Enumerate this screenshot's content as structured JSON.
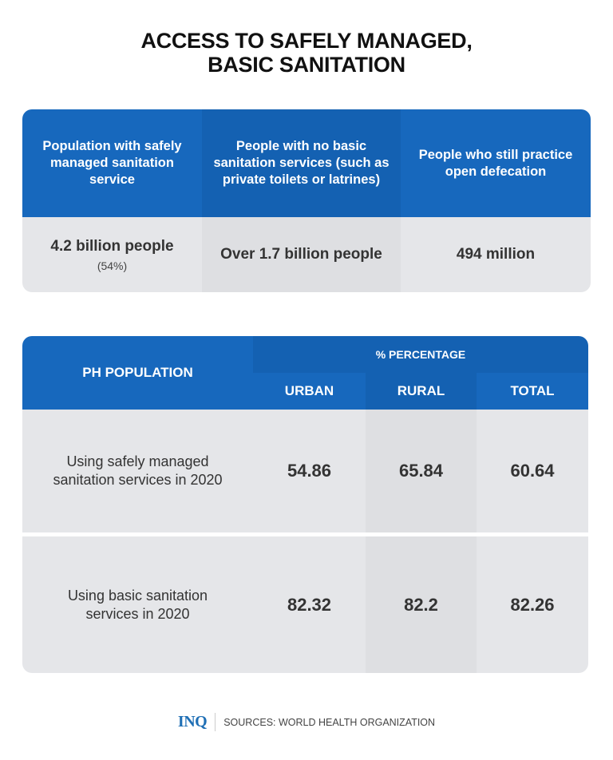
{
  "title": {
    "line1": "ACCESS TO SAFELY MANAGED,",
    "line2": "BASIC SANITATION"
  },
  "global_table": {
    "columns": [
      {
        "header": "Population with safely managed sanitation service",
        "value": "4.2 billion people",
        "note": "(54%)"
      },
      {
        "header": "People with no basic sanitation services (such as private toilets or latrines)",
        "value": "Over 1.7 billion people"
      },
      {
        "header": "People who still practice open defecation",
        "value": "494 million"
      }
    ]
  },
  "ph_table": {
    "row_header": "PH POPULATION",
    "group_header": "% PERCENTAGE",
    "columns": [
      "URBAN",
      "RURAL",
      "TOTAL"
    ],
    "rows": [
      {
        "label": "Using safely managed sanitation services in 2020",
        "values": [
          "54.86",
          "65.84",
          "60.64"
        ]
      },
      {
        "label": "Using basic sanitation services in 2020",
        "values": [
          "82.32",
          "82.2",
          "82.26"
        ]
      }
    ]
  },
  "footer": {
    "logo": "INQ",
    "source": "SOURCES: WORLD HEALTH ORGANIZATION"
  },
  "colors": {
    "accent": "#1768bd",
    "cell": "#e5e6e9"
  }
}
